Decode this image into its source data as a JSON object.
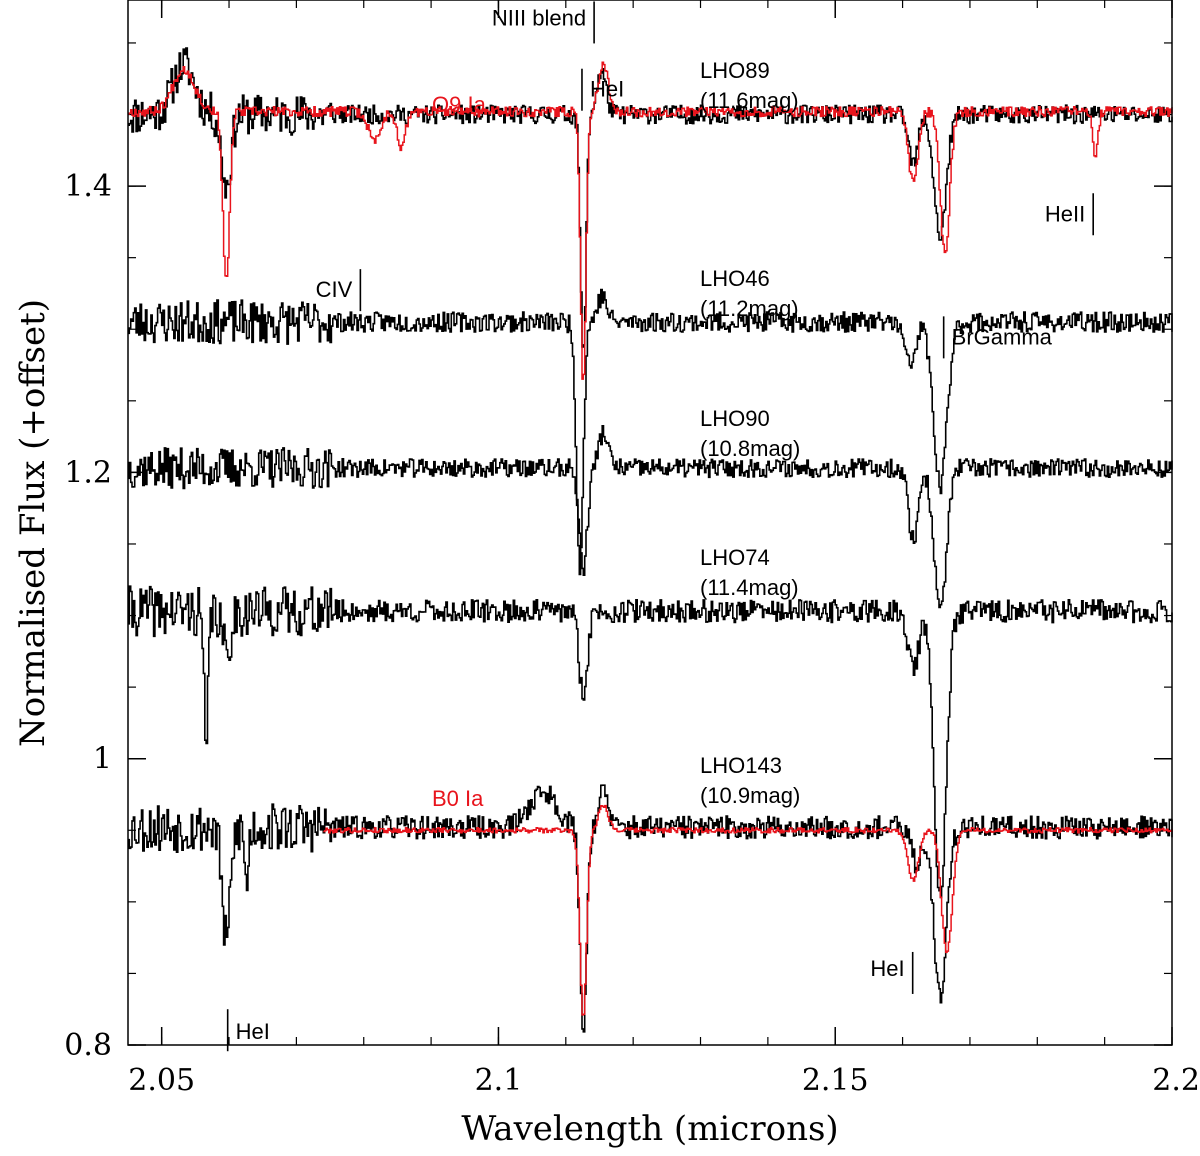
{
  "colors": {
    "observed": "#000000",
    "model": "#e8141c",
    "background": "#ffffff"
  },
  "chart_data": {
    "type": "line",
    "title": "",
    "xlabel": "Wavelength (microns)",
    "ylabel": "Normalised Flux (+offset)",
    "xlim": [
      2.045,
      2.2
    ],
    "ylim": [
      0.8,
      1.53
    ],
    "x_ticks": [
      {
        "value": 2.05,
        "label": "2.05"
      },
      {
        "value": 2.1,
        "label": "2.1"
      },
      {
        "value": 2.15,
        "label": "2.15"
      },
      {
        "value": 2.2,
        "label": "2.2"
      }
    ],
    "x_minor_step": 0.01,
    "y_ticks": [
      {
        "value": 0.8,
        "label": "0.8"
      },
      {
        "value": 1.0,
        "label": "1"
      },
      {
        "value": 1.2,
        "label": "1.2"
      },
      {
        "value": 1.4,
        "label": "1.4"
      }
    ],
    "y_minor_step": 0.05,
    "series": [
      {
        "name": "LHO89",
        "label": "LHO89",
        "mag": "(11.6mag)",
        "color": "#000000",
        "baseline": 1.45,
        "x_start": 2.045,
        "noise": 0.0065,
        "seed": 11,
        "features": [
          {
            "c": 2.0595,
            "d": -0.05,
            "w": 0.0007
          },
          {
            "c": 2.0532,
            "d": 0.035,
            "w": 0.0016
          },
          {
            "c": 2.1125,
            "d": -0.17,
            "w": 0.0004
          },
          {
            "c": 2.1152,
            "d": 0.03,
            "w": 0.0007
          },
          {
            "c": 2.1615,
            "d": -0.035,
            "w": 0.0007
          },
          {
            "c": 2.1655,
            "d": -0.085,
            "w": 0.0009
          }
        ]
      },
      {
        "name": "LHO46",
        "label": "LHO46",
        "mag": "(11.2mag)",
        "color": "#000000",
        "baseline": 1.305,
        "x_start": 2.045,
        "noise": 0.007,
        "seed": 23,
        "features": [
          {
            "c": 2.112,
            "d": -0.17,
            "w": 0.0005
          },
          {
            "c": 2.1153,
            "d": 0.018,
            "w": 0.0007
          },
          {
            "c": 2.161,
            "d": -0.03,
            "w": 0.0008
          },
          {
            "c": 2.1655,
            "d": -0.115,
            "w": 0.001
          }
        ]
      },
      {
        "name": "LHO90",
        "label": "LHO90",
        "mag": "(10.8mag)",
        "color": "#000000",
        "baseline": 1.203,
        "x_start": 2.045,
        "noise": 0.0065,
        "seed": 37,
        "features": [
          {
            "c": 2.1125,
            "d": -0.07,
            "w": 0.0006
          },
          {
            "c": 2.1155,
            "d": 0.025,
            "w": 0.0007
          },
          {
            "c": 2.1615,
            "d": -0.05,
            "w": 0.0007
          },
          {
            "c": 2.1655,
            "d": -0.1,
            "w": 0.0009
          }
        ]
      },
      {
        "name": "LHO74",
        "label": "LHO74",
        "mag": "(11.4mag)",
        "color": "#000000",
        "baseline": 1.103,
        "x_start": 2.045,
        "noise": 0.008,
        "seed": 41,
        "features": [
          {
            "c": 2.0565,
            "d": -0.1,
            "w": 0.0003
          },
          {
            "c": 2.0595,
            "d": -0.03,
            "w": 0.0006
          },
          {
            "c": 2.1125,
            "d": -0.06,
            "w": 0.0006
          },
          {
            "c": 2.1615,
            "d": -0.04,
            "w": 0.0008
          },
          {
            "c": 2.1655,
            "d": -0.2,
            "w": 0.0009
          }
        ]
      },
      {
        "name": "LHO143",
        "label": "LHO143",
        "mag": "(10.9mag)",
        "color": "#000000",
        "baseline": 0.952,
        "x_start": 2.045,
        "noise": 0.008,
        "seed": 53,
        "features": [
          {
            "c": 2.0595,
            "d": -0.08,
            "w": 0.0006
          },
          {
            "c": 2.0625,
            "d": -0.04,
            "w": 0.0003
          },
          {
            "c": 2.1065,
            "d": 0.025,
            "w": 0.002
          },
          {
            "c": 2.1125,
            "d": -0.14,
            "w": 0.0005
          },
          {
            "c": 2.1155,
            "d": 0.025,
            "w": 0.0007
          },
          {
            "c": 2.162,
            "d": -0.025,
            "w": 0.0008
          },
          {
            "c": 2.1655,
            "d": -0.12,
            "w": 0.0009
          }
        ]
      },
      {
        "name": "O9 Ia model",
        "label": "O9 Ia",
        "color": "#e8141c",
        "baseline": 1.452,
        "x_start": 2.045,
        "noise": 0.0035,
        "seed": 67,
        "features": [
          {
            "c": 2.0595,
            "d": -0.12,
            "w": 0.0005
          },
          {
            "c": 2.0532,
            "d": 0.03,
            "w": 0.0016
          },
          {
            "c": 2.0815,
            "d": -0.02,
            "w": 0.0009
          },
          {
            "c": 2.0855,
            "d": -0.025,
            "w": 0.0006
          },
          {
            "c": 2.1125,
            "d": -0.19,
            "w": 0.0004
          },
          {
            "c": 2.1155,
            "d": 0.035,
            "w": 0.0007
          },
          {
            "c": 2.1615,
            "d": -0.05,
            "w": 0.0007
          },
          {
            "c": 2.1662,
            "d": -0.1,
            "w": 0.0007
          },
          {
            "c": 2.1885,
            "d": -0.03,
            "w": 0.0004
          }
        ]
      },
      {
        "name": "B0 Ia model",
        "label": "B0 Ia",
        "color": "#e8141c",
        "baseline": 0.95,
        "x_start": 2.074,
        "noise": 0.0018,
        "seed": 79,
        "features": [
          {
            "c": 2.1125,
            "d": -0.13,
            "w": 0.0005
          },
          {
            "c": 2.1155,
            "d": 0.018,
            "w": 0.0007
          },
          {
            "c": 2.1615,
            "d": -0.035,
            "w": 0.0008
          },
          {
            "c": 2.1665,
            "d": -0.085,
            "w": 0.0008
          }
        ]
      }
    ],
    "annotations": [
      {
        "name": "niii-blend",
        "text": "NIII blend",
        "x": 2.1142,
        "y": 1.529,
        "color": "#000000"
      },
      {
        "name": "hei-top",
        "text": "HeI",
        "x": 2.1124,
        "y": 1.482,
        "color": "#000000"
      },
      {
        "name": "heii",
        "text": "HeII",
        "x": 2.1883,
        "y": 1.395,
        "color": "#000000"
      },
      {
        "name": "civ",
        "text": "CIV",
        "x": 2.0795,
        "y": 1.342,
        "color": "#000000"
      },
      {
        "name": "brgamma",
        "text": "BrGamma",
        "x": 2.1661,
        "y": 1.309,
        "color": "#000000"
      },
      {
        "name": "hei-mid",
        "text": "HeI",
        "x": 2.1615,
        "y": 0.865,
        "color": "#000000"
      },
      {
        "name": "hei-bottom",
        "text": "HeI",
        "x": 2.0598,
        "y": 0.825,
        "color": "#000000"
      }
    ]
  }
}
